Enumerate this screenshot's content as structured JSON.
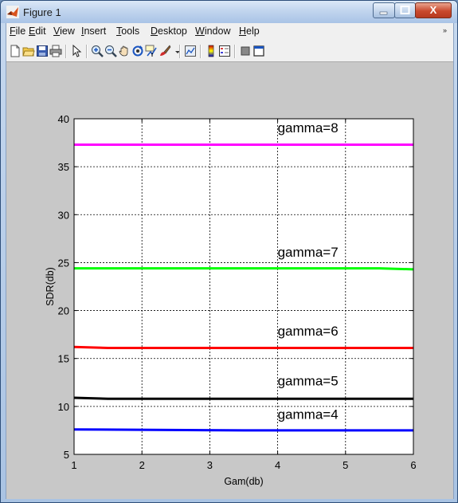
{
  "window": {
    "title": "Figure 1",
    "min_label": "",
    "max_label": "",
    "close_label": "X"
  },
  "menu": {
    "items": [
      {
        "first": "F",
        "rest": "ile"
      },
      {
        "first": "E",
        "rest": "dit"
      },
      {
        "first": "V",
        "rest": "iew"
      },
      {
        "first": "I",
        "rest": "nsert"
      },
      {
        "first": "T",
        "rest": "ools"
      },
      {
        "first": "D",
        "rest": "esktop"
      },
      {
        "first": "W",
        "rest": "indow"
      },
      {
        "first": "H",
        "rest": "elp"
      }
    ],
    "chevron": "»"
  },
  "toolbar": {
    "icons": [
      "new-figure-icon",
      "open-file-icon",
      "save-icon",
      "print-icon",
      "pointer-icon",
      "zoom-in-icon",
      "zoom-out-icon",
      "pan-icon",
      "rotate-icon",
      "data-cursor-icon",
      "brush-icon",
      "link-plot-icon",
      "colorbar-icon",
      "legend-icon",
      "hide-plot-tools-icon",
      "show-plot-tools-icon"
    ]
  },
  "chart_data": {
    "type": "line",
    "title": "",
    "xlabel": "Gam(db)",
    "ylabel": "SDR(db)",
    "xlim": [
      1,
      6
    ],
    "ylim": [
      5,
      40
    ],
    "xticks": [
      1,
      2,
      3,
      4,
      5,
      6
    ],
    "yticks": [
      5,
      10,
      15,
      20,
      25,
      30,
      35,
      40
    ],
    "grid": true,
    "series": [
      {
        "name": "gamma=8",
        "color": "#ff00ff",
        "x": [
          1,
          6
        ],
        "y": [
          37.3,
          37.3
        ]
      },
      {
        "name": "gamma=7",
        "color": "#00ff00",
        "x": [
          1,
          5.5,
          6
        ],
        "y": [
          24.4,
          24.4,
          24.3
        ]
      },
      {
        "name": "gamma=6",
        "color": "#ff0000",
        "x": [
          1,
          1.5,
          6
        ],
        "y": [
          16.2,
          16.1,
          16.1
        ]
      },
      {
        "name": "gamma=5",
        "color": "#000000",
        "x": [
          1,
          1.5,
          6
        ],
        "y": [
          10.9,
          10.8,
          10.8
        ]
      },
      {
        "name": "gamma=4",
        "color": "#0000ff",
        "x": [
          1,
          3.5,
          6
        ],
        "y": [
          7.6,
          7.5,
          7.5
        ]
      }
    ],
    "annotations": [
      {
        "text": "gamma=8",
        "x": 4.0,
        "y": 38.6
      },
      {
        "text": "gamma=7",
        "x": 4.0,
        "y": 25.6
      },
      {
        "text": "gamma=6",
        "x": 4.0,
        "y": 17.4
      },
      {
        "text": "gamma=5",
        "x": 4.0,
        "y": 12.2
      },
      {
        "text": "gamma=4",
        "x": 4.0,
        "y": 8.7
      }
    ]
  }
}
